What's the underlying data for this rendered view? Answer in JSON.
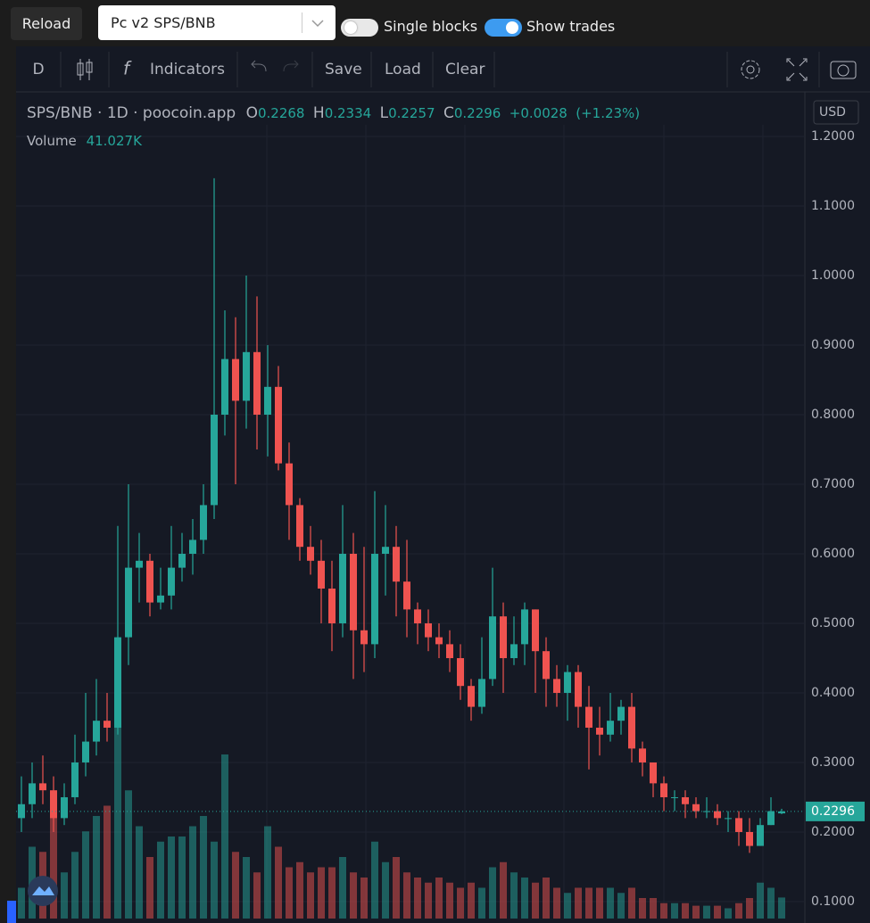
{
  "ui": {
    "reload": "Reload",
    "pair_select": "Pc v2 SPS/BNB",
    "single_blocks": "Single blocks",
    "show_trades": "Show trades",
    "interval": "D",
    "indicators": "Indicators",
    "save": "Save",
    "load": "Load",
    "clear": "Clear",
    "currency": "USD"
  },
  "chart_data": {
    "type": "candlestick",
    "title": "SPS/BNB · 1D · poocoin.app",
    "legend": {
      "o": "O",
      "open": 0.2268,
      "h": "H",
      "high": 0.2334,
      "l": "L",
      "low": 0.2257,
      "c": "C",
      "close": 0.2296,
      "change": {
        "value": 0.0028,
        "label": "+0.0028"
      },
      "change_pct": {
        "value": 1.23,
        "label": "(+1.23%)"
      }
    },
    "up_color": "#26a69a",
    "down_color": "#ef5350",
    "series": {
      "open": [
        0.22,
        0.24,
        0.27,
        0.26,
        0.22,
        0.25,
        0.3,
        0.33,
        0.36,
        0.35,
        0.48,
        0.58,
        0.59,
        0.53,
        0.54,
        0.58,
        0.6,
        0.62,
        0.67,
        0.8,
        0.88,
        0.82,
        0.89,
        0.8,
        0.84,
        0.73,
        0.67,
        0.61,
        0.59,
        0.55,
        0.5,
        0.6,
        0.49,
        0.47,
        0.6,
        0.61,
        0.56,
        0.52,
        0.5,
        0.48,
        0.47,
        0.45,
        0.41,
        0.38,
        0.42,
        0.51,
        0.45,
        0.47,
        0.52,
        0.46,
        0.42,
        0.4,
        0.43,
        0.38,
        0.35,
        0.34,
        0.36,
        0.38,
        0.32,
        0.3,
        0.27,
        0.25,
        0.25,
        0.24,
        0.23,
        0.23,
        0.22,
        0.22,
        0.2,
        0.18,
        0.21,
        0.2268
      ],
      "high": [
        0.28,
        0.3,
        0.31,
        0.28,
        0.27,
        0.34,
        0.4,
        0.42,
        0.4,
        0.64,
        0.7,
        0.63,
        0.6,
        0.58,
        0.64,
        0.63,
        0.65,
        0.7,
        1.14,
        0.95,
        0.94,
        1.0,
        0.97,
        0.9,
        0.87,
        0.76,
        0.68,
        0.64,
        0.62,
        0.59,
        0.67,
        0.63,
        0.61,
        0.69,
        0.67,
        0.64,
        0.62,
        0.53,
        0.52,
        0.5,
        0.49,
        0.47,
        0.42,
        0.48,
        0.58,
        0.53,
        0.51,
        0.53,
        0.52,
        0.48,
        0.44,
        0.44,
        0.44,
        0.41,
        0.38,
        0.4,
        0.39,
        0.4,
        0.33,
        0.3,
        0.28,
        0.26,
        0.26,
        0.25,
        0.25,
        0.24,
        0.23,
        0.23,
        0.22,
        0.22,
        0.25,
        0.2334
      ],
      "low": [
        0.2,
        0.22,
        0.24,
        0.2,
        0.21,
        0.24,
        0.28,
        0.31,
        0.33,
        0.34,
        0.44,
        0.53,
        0.51,
        0.52,
        0.52,
        0.56,
        0.57,
        0.6,
        0.65,
        0.77,
        0.7,
        0.78,
        0.75,
        0.74,
        0.72,
        0.62,
        0.59,
        0.57,
        0.5,
        0.46,
        0.48,
        0.42,
        0.43,
        0.45,
        0.54,
        0.51,
        0.48,
        0.47,
        0.46,
        0.45,
        0.43,
        0.39,
        0.36,
        0.37,
        0.41,
        0.4,
        0.44,
        0.44,
        0.4,
        0.38,
        0.38,
        0.36,
        0.35,
        0.29,
        0.31,
        0.33,
        0.34,
        0.3,
        0.28,
        0.25,
        0.23,
        0.23,
        0.22,
        0.22,
        0.22,
        0.21,
        0.2,
        0.18,
        0.17,
        0.18,
        0.21,
        0.2257
      ],
      "close": [
        0.24,
        0.27,
        0.26,
        0.22,
        0.25,
        0.3,
        0.33,
        0.36,
        0.35,
        0.48,
        0.58,
        0.59,
        0.53,
        0.54,
        0.58,
        0.6,
        0.62,
        0.67,
        0.8,
        0.88,
        0.82,
        0.89,
        0.8,
        0.84,
        0.73,
        0.67,
        0.61,
        0.59,
        0.55,
        0.5,
        0.6,
        0.49,
        0.47,
        0.6,
        0.61,
        0.56,
        0.52,
        0.5,
        0.48,
        0.47,
        0.45,
        0.41,
        0.38,
        0.42,
        0.51,
        0.45,
        0.47,
        0.52,
        0.46,
        0.42,
        0.4,
        0.43,
        0.38,
        0.35,
        0.34,
        0.36,
        0.38,
        0.32,
        0.3,
        0.27,
        0.25,
        0.25,
        0.24,
        0.23,
        0.23,
        0.22,
        0.22,
        0.2,
        0.18,
        0.21,
        0.23,
        0.2296
      ]
    },
    "volume": {
      "name": "Volume",
      "values": [
        60,
        140,
        130,
        240,
        90,
        130,
        170,
        200,
        220,
        400,
        250,
        180,
        120,
        150,
        160,
        160,
        180,
        200,
        150,
        320,
        130,
        120,
        90,
        180,
        140,
        100,
        110,
        90,
        100,
        100,
        120,
        90,
        80,
        150,
        110,
        120,
        90,
        80,
        70,
        80,
        70,
        60,
        70,
        60,
        100,
        110,
        90,
        80,
        70,
        80,
        60,
        50,
        60,
        60,
        60,
        60,
        50,
        60,
        40,
        40,
        30,
        30,
        30,
        25,
        25,
        25,
        20,
        30,
        40,
        70,
        60,
        41.027
      ],
      "last": {
        "value": 41.027,
        "label": "41.027K"
      }
    },
    "last_price": 0.2296,
    "ylim": [
      0.0756,
      1.2167
    ],
    "yticks": [
      {
        "value": 0.1,
        "label": "0.1000"
      },
      {
        "value": 0.2,
        "label": "0.2000"
      },
      {
        "value": 0.3,
        "label": "0.3000"
      },
      {
        "value": 0.4,
        "label": "0.4000"
      },
      {
        "value": 0.5,
        "label": "0.5000"
      },
      {
        "value": 0.6,
        "label": "0.6000"
      },
      {
        "value": 0.7,
        "label": "0.7000"
      },
      {
        "value": 0.8,
        "label": "0.8000"
      },
      {
        "value": 0.9,
        "label": "0.9000"
      },
      {
        "value": 1.0,
        "label": "1.0000"
      },
      {
        "value": 1.1,
        "label": "1.1000"
      },
      {
        "value": 1.2,
        "label": "1.2000"
      }
    ],
    "grid": true
  }
}
